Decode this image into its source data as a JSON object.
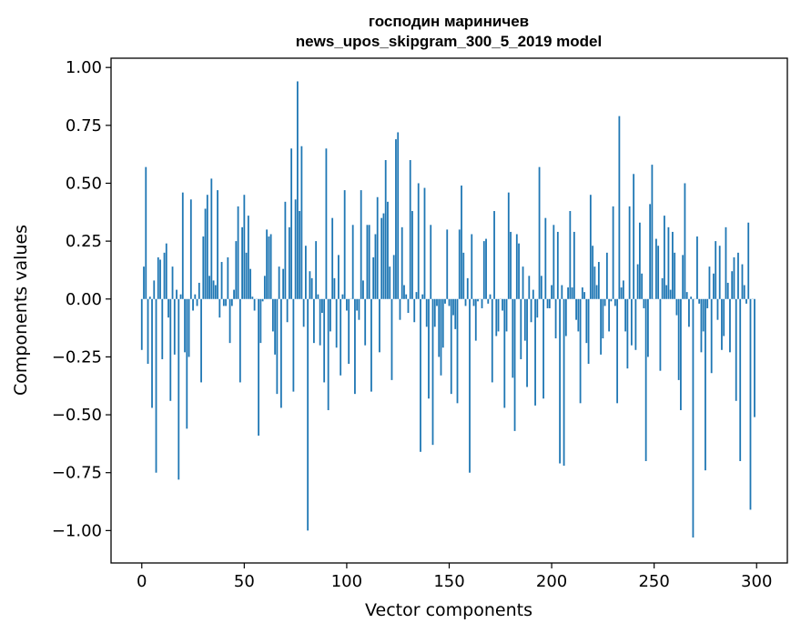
{
  "chart_data": {
    "type": "bar",
    "title_line1": "господин мариничев",
    "title_line2": "news_upos_skipgram_300_5_2019 model",
    "xlabel": "Vector components",
    "ylabel": "Components values",
    "xlim": [
      -15,
      315
    ],
    "ylim": [
      -1.14,
      1.04
    ],
    "xticks": [
      0,
      50,
      100,
      150,
      200,
      250,
      300
    ],
    "xtick_labels": [
      "0",
      "50",
      "100",
      "150",
      "200",
      "250",
      "300"
    ],
    "yticks": [
      1.0,
      0.75,
      0.5,
      0.25,
      0.0,
      -0.25,
      -0.5,
      -0.75,
      -1.0
    ],
    "ytick_labels": [
      "1.00",
      "0.75",
      "0.50",
      "0.25",
      "0.00",
      "−0.25",
      "−0.50",
      "−0.75",
      "−1.00"
    ],
    "bar_color": "#1f77b4",
    "grid": false,
    "values": [
      -0.22,
      0.14,
      0.57,
      -0.28,
      0.01,
      -0.47,
      0.08,
      -0.75,
      0.18,
      0.17,
      -0.26,
      0.2,
      0.24,
      -0.08,
      -0.44,
      0.14,
      -0.24,
      0.04,
      -0.78,
      0.02,
      0.46,
      -0.23,
      -0.56,
      -0.25,
      0.43,
      -0.05,
      0.02,
      -0.03,
      0.07,
      -0.36,
      0.27,
      0.39,
      0.45,
      0.1,
      0.52,
      0.08,
      0.06,
      0.47,
      -0.08,
      0.16,
      -0.03,
      -0.03,
      0.18,
      -0.19,
      -0.03,
      0.04,
      0.25,
      0.4,
      -0.36,
      0.31,
      0.45,
      0.2,
      0.36,
      0.13,
      0.01,
      -0.05,
      0.0,
      -0.59,
      -0.19,
      -0.01,
      0.1,
      0.3,
      0.27,
      0.28,
      -0.14,
      -0.24,
      -0.41,
      0.14,
      -0.47,
      0.13,
      0.42,
      -0.1,
      0.31,
      0.65,
      -0.4,
      0.43,
      0.94,
      0.38,
      0.66,
      -0.12,
      0.23,
      -1.0,
      0.12,
      0.09,
      -0.19,
      0.25,
      0.02,
      -0.2,
      -0.06,
      -0.36,
      0.65,
      -0.48,
      -0.14,
      0.35,
      0.09,
      -0.21,
      0.19,
      -0.33,
      0.02,
      0.47,
      -0.05,
      -0.28,
      0.0,
      0.32,
      -0.41,
      -0.05,
      -0.09,
      0.47,
      0.08,
      -0.2,
      0.32,
      0.32,
      -0.4,
      0.18,
      0.28,
      0.44,
      -0.23,
      0.35,
      0.37,
      0.6,
      0.42,
      0.14,
      -0.35,
      0.19,
      0.69,
      0.72,
      -0.09,
      0.31,
      0.06,
      0.02,
      -0.06,
      0.6,
      0.38,
      -0.1,
      0.03,
      0.5,
      -0.66,
      0.02,
      0.48,
      -0.12,
      -0.43,
      0.32,
      -0.63,
      -0.12,
      -0.03,
      -0.25,
      -0.33,
      -0.21,
      -0.02,
      0.3,
      -0.03,
      -0.41,
      -0.07,
      -0.13,
      -0.45,
      0.3,
      0.49,
      0.2,
      -0.03,
      0.09,
      -0.75,
      0.28,
      -0.03,
      -0.18,
      -0.01,
      0.0,
      -0.04,
      0.25,
      0.26,
      -0.02,
      0.02,
      -0.36,
      0.38,
      -0.16,
      -0.14,
      0.0,
      -0.05,
      -0.47,
      -0.14,
      0.46,
      0.29,
      -0.34,
      -0.57,
      0.28,
      0.24,
      -0.26,
      0.14,
      -0.18,
      -0.38,
      0.1,
      -0.1,
      0.04,
      -0.46,
      -0.08,
      0.57,
      0.1,
      -0.43,
      0.35,
      -0.04,
      -0.04,
      0.06,
      0.32,
      -0.17,
      0.29,
      -0.71,
      0.06,
      -0.72,
      -0.16,
      0.05,
      0.38,
      0.05,
      0.29,
      -0.09,
      -0.14,
      -0.45,
      0.05,
      0.03,
      -0.19,
      -0.28,
      0.45,
      0.23,
      0.14,
      0.06,
      0.16,
      -0.24,
      -0.17,
      -0.03,
      0.2,
      -0.14,
      -0.01,
      0.4,
      -0.03,
      -0.45,
      0.79,
      0.05,
      0.08,
      -0.14,
      -0.3,
      0.4,
      -0.2,
      0.54,
      -0.22,
      0.15,
      0.33,
      0.11,
      -0.04,
      -0.7,
      -0.25,
      0.41,
      0.58,
      0.0,
      0.26,
      0.23,
      -0.31,
      0.09,
      0.36,
      0.06,
      0.31,
      0.04,
      0.29,
      0.2,
      -0.07,
      -0.35,
      -0.48,
      0.19,
      0.5,
      0.03,
      -0.12,
      0.01,
      -1.03,
      0.0,
      0.27,
      -0.02,
      -0.23,
      -0.14,
      -0.74,
      -0.04,
      0.14,
      -0.32,
      0.11,
      0.25,
      -0.09,
      0.23,
      -0.22,
      -0.16,
      0.31,
      0.07,
      -0.23,
      0.12,
      0.18,
      -0.44,
      0.2,
      -0.7,
      0.15,
      0.06,
      -0.02,
      0.33,
      -0.91,
      0.0,
      -0.51
    ]
  }
}
